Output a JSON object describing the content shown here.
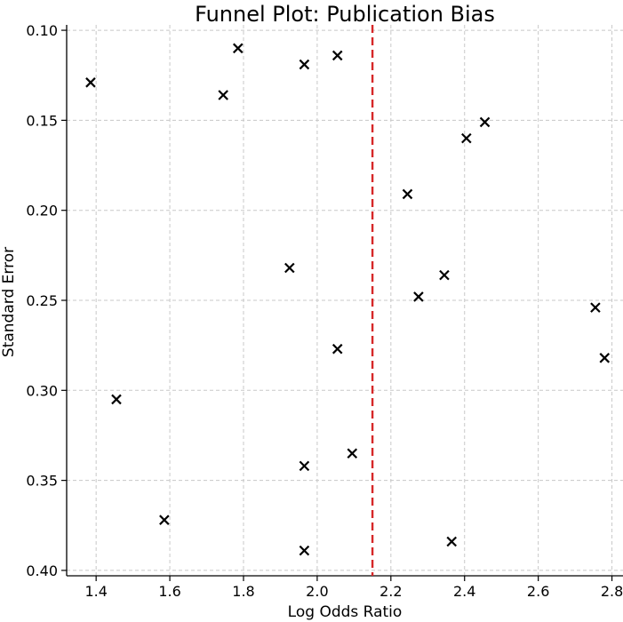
{
  "chart_data": {
    "type": "scatter",
    "title": "Funnel Plot: Publication Bias",
    "xlabel": "Log Odds Ratio",
    "ylabel": "Standard Error",
    "xlim": [
      1.32,
      2.83
    ],
    "ylim": [
      0.403,
      0.097
    ],
    "y_inverted": true,
    "grid": true,
    "xticks": [
      "1.4",
      "1.6",
      "1.8",
      "2.0",
      "2.2",
      "2.4",
      "2.6",
      "2.8"
    ],
    "yticks": [
      "0.10",
      "0.15",
      "0.20",
      "0.25",
      "0.30",
      "0.35",
      "0.40"
    ],
    "marker": "x",
    "marker_color": "#000000",
    "reference_line": {
      "x": 2.15,
      "style": "dashed",
      "color": "#d62728"
    },
    "series": [
      {
        "points": [
          {
            "x": 1.385,
            "y": 0.129
          },
          {
            "x": 1.455,
            "y": 0.305
          },
          {
            "x": 1.585,
            "y": 0.372
          },
          {
            "x": 1.745,
            "y": 0.136
          },
          {
            "x": 1.785,
            "y": 0.11
          },
          {
            "x": 1.925,
            "y": 0.232
          },
          {
            "x": 1.965,
            "y": 0.119
          },
          {
            "x": 1.965,
            "y": 0.342
          },
          {
            "x": 1.965,
            "y": 0.389
          },
          {
            "x": 2.055,
            "y": 0.114
          },
          {
            "x": 2.055,
            "y": 0.277
          },
          {
            "x": 2.095,
            "y": 0.335
          },
          {
            "x": 2.245,
            "y": 0.191
          },
          {
            "x": 2.275,
            "y": 0.248
          },
          {
            "x": 2.345,
            "y": 0.236
          },
          {
            "x": 2.365,
            "y": 0.384
          },
          {
            "x": 2.405,
            "y": 0.16
          },
          {
            "x": 2.455,
            "y": 0.151
          },
          {
            "x": 2.755,
            "y": 0.254
          },
          {
            "x": 2.78,
            "y": 0.282
          }
        ]
      }
    ]
  }
}
